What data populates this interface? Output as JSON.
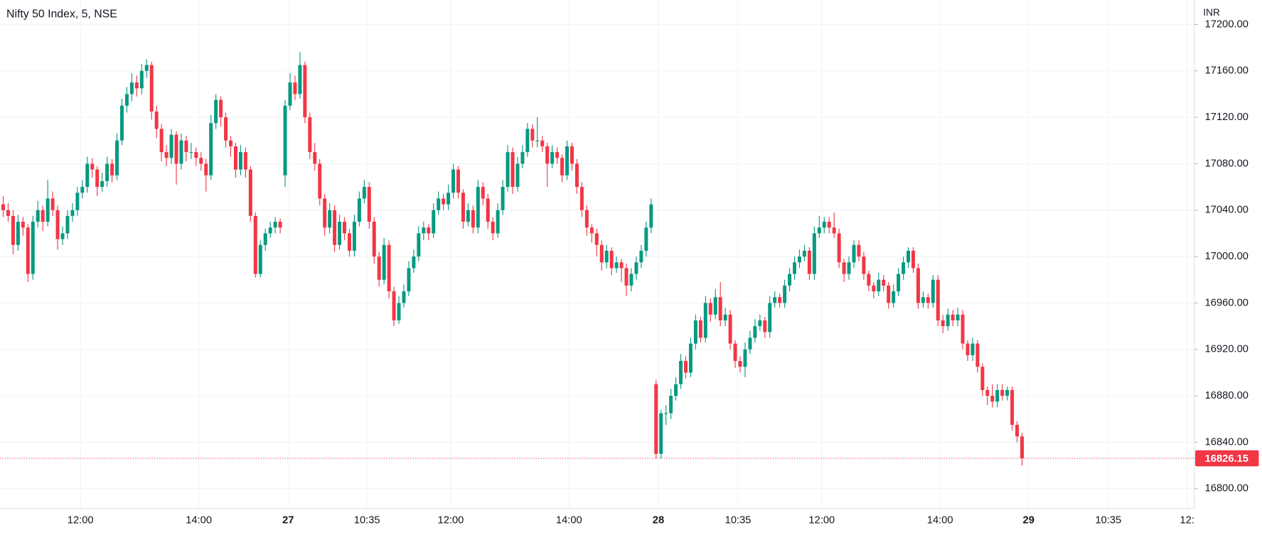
{
  "chart_data": {
    "type": "candlestick",
    "title": "Nifty 50 Index, 5, NSE",
    "currency": "INR",
    "up_color": "#089981",
    "down_color": "#f23645",
    "grid": true,
    "ylim": [
      16783,
      17221
    ],
    "yticks": [
      {
        "value": 16800,
        "label": "16800.00"
      },
      {
        "value": 16840,
        "label": "16840.00"
      },
      {
        "value": 16880,
        "label": "16880.00"
      },
      {
        "value": 16920,
        "label": "16920.00"
      },
      {
        "value": 16960,
        "label": "16960.00"
      },
      {
        "value": 17000,
        "label": "17000.00"
      },
      {
        "value": 17040,
        "label": "17040.00"
      },
      {
        "value": 17080,
        "label": "17080.00"
      },
      {
        "value": 17120,
        "label": "17120.00"
      },
      {
        "value": 17160,
        "label": "17160.00"
      },
      {
        "value": 17200,
        "label": "17200.00"
      }
    ],
    "xticks": [
      "12:00",
      "14:00",
      "27",
      "10:35",
      "12:00",
      "14:00",
      "28",
      "10:35",
      "12:00",
      "14:00",
      "29",
      "10:35",
      "12:"
    ],
    "ohlc": [
      [
        17045,
        17052,
        17034,
        17040
      ],
      [
        17040,
        17046,
        17030,
        17035
      ],
      [
        17035,
        17040,
        17002,
        17010
      ],
      [
        17010,
        17036,
        17005,
        17030
      ],
      [
        17030,
        17034,
        17018,
        17025
      ],
      [
        17025,
        17028,
        16978,
        16985
      ],
      [
        16985,
        17035,
        16980,
        17030
      ],
      [
        17030,
        17048,
        17025,
        17040
      ],
      [
        17040,
        17044,
        17022,
        17030
      ],
      [
        17030,
        17066,
        17026,
        17050
      ],
      [
        17050,
        17056,
        17035,
        17040
      ],
      [
        17040,
        17044,
        17006,
        17015
      ],
      [
        17015,
        17026,
        17010,
        17020
      ],
      [
        17020,
        17040,
        17015,
        17035
      ],
      [
        17035,
        17046,
        17030,
        17040
      ],
      [
        17040,
        17060,
        17035,
        17055
      ],
      [
        17055,
        17066,
        17050,
        17060
      ],
      [
        17060,
        17086,
        17055,
        17080
      ],
      [
        17080,
        17085,
        17068,
        17075
      ],
      [
        17075,
        17078,
        17052,
        17060
      ],
      [
        17060,
        17072,
        17056,
        17065
      ],
      [
        17065,
        17086,
        17060,
        17080
      ],
      [
        17080,
        17084,
        17064,
        17070
      ],
      [
        17070,
        17106,
        17066,
        17100
      ],
      [
        17100,
        17136,
        17096,
        17130
      ],
      [
        17130,
        17146,
        17124,
        17140
      ],
      [
        17140,
        17158,
        17134,
        17150
      ],
      [
        17150,
        17156,
        17138,
        17145
      ],
      [
        17145,
        17166,
        17140,
        17160
      ],
      [
        17160,
        17170,
        17154,
        17165
      ],
      [
        17165,
        17168,
        17118,
        17125
      ],
      [
        17125,
        17130,
        17102,
        17110
      ],
      [
        17110,
        17114,
        17082,
        17090
      ],
      [
        17090,
        17096,
        17078,
        17085
      ],
      [
        17085,
        17110,
        17080,
        17105
      ],
      [
        17105,
        17108,
        17062,
        17080
      ],
      [
        17080,
        17106,
        17075,
        17100
      ],
      [
        17100,
        17104,
        17082,
        17090
      ],
      [
        17090,
        17098,
        17084,
        17090
      ],
      [
        17090,
        17094,
        17078,
        17085
      ],
      [
        17085,
        17090,
        17074,
        17080
      ],
      [
        17080,
        17084,
        17056,
        17070
      ],
      [
        17070,
        17122,
        17066,
        17115
      ],
      [
        17115,
        17140,
        17110,
        17135
      ],
      [
        17135,
        17138,
        17112,
        17120
      ],
      [
        17120,
        17124,
        17094,
        17100
      ],
      [
        17100,
        17104,
        17086,
        17095
      ],
      [
        17095,
        17098,
        17068,
        17075
      ],
      [
        17075,
        17096,
        17070,
        17090
      ],
      [
        17090,
        17094,
        17068,
        17075
      ],
      [
        17075,
        17078,
        17030,
        17035
      ],
      [
        17035,
        17038,
        16982,
        16985
      ],
      [
        16985,
        17014,
        16982,
        17010
      ],
      [
        17010,
        17024,
        17005,
        17020
      ],
      [
        17020,
        17030,
        17016,
        17025
      ],
      [
        17025,
        17034,
        17020,
        17030
      ],
      [
        17030,
        17033,
        17020,
        17025
      ],
      [
        17070,
        17135,
        17060,
        17130
      ],
      [
        17130,
        17158,
        17126,
        17150
      ],
      [
        17150,
        17156,
        17135,
        17140
      ],
      [
        17140,
        17176,
        17136,
        17165
      ],
      [
        17165,
        17168,
        17115,
        17120
      ],
      [
        17120,
        17124,
        17084,
        17090
      ],
      [
        17090,
        17098,
        17074,
        17080
      ],
      [
        17080,
        17084,
        17044,
        17050
      ],
      [
        17050,
        17054,
        17018,
        17025
      ],
      [
        17025,
        17046,
        17020,
        17040
      ],
      [
        17040,
        17044,
        17004,
        17010
      ],
      [
        17010,
        17036,
        17006,
        17030
      ],
      [
        17030,
        17034,
        17014,
        17020
      ],
      [
        17020,
        17024,
        17000,
        17005
      ],
      [
        17005,
        17036,
        17000,
        17030
      ],
      [
        17030,
        17056,
        17026,
        17050
      ],
      [
        17050,
        17066,
        17046,
        17060
      ],
      [
        17060,
        17064,
        17024,
        17030
      ],
      [
        17030,
        17034,
        16994,
        17000
      ],
      [
        17000,
        17004,
        16974,
        16980
      ],
      [
        16980,
        17016,
        16976,
        17010
      ],
      [
        17010,
        17014,
        16964,
        16970
      ],
      [
        16970,
        16974,
        16940,
        16945
      ],
      [
        16945,
        16966,
        16942,
        16960
      ],
      [
        16960,
        16976,
        16956,
        16970
      ],
      [
        16970,
        16996,
        16966,
        16990
      ],
      [
        16990,
        17006,
        16986,
        17000
      ],
      [
        17000,
        17026,
        16996,
        17020
      ],
      [
        17020,
        17030,
        17014,
        17025
      ],
      [
        17025,
        17028,
        17014,
        17020
      ],
      [
        17020,
        17046,
        17016,
        17040
      ],
      [
        17040,
        17056,
        17036,
        17050
      ],
      [
        17050,
        17054,
        17040,
        17045
      ],
      [
        17045,
        17062,
        17040,
        17055
      ],
      [
        17055,
        17080,
        17050,
        17075
      ],
      [
        17075,
        17078,
        17050,
        17055
      ],
      [
        17055,
        17058,
        17024,
        17030
      ],
      [
        17030,
        17046,
        17026,
        17040
      ],
      [
        17040,
        17044,
        17020,
        17025
      ],
      [
        17025,
        17066,
        17020,
        17060
      ],
      [
        17060,
        17064,
        17044,
        17050
      ],
      [
        17050,
        17054,
        17024,
        17030
      ],
      [
        17030,
        17034,
        17014,
        17020
      ],
      [
        17020,
        17046,
        17016,
        17040
      ],
      [
        17040,
        17066,
        17036,
        17060
      ],
      [
        17060,
        17096,
        17056,
        17090
      ],
      [
        17090,
        17094,
        17054,
        17060
      ],
      [
        17060,
        17086,
        17056,
        17080
      ],
      [
        17080,
        17096,
        17076,
        17090
      ],
      [
        17090,
        17115,
        17086,
        17110
      ],
      [
        17110,
        17114,
        17094,
        17100
      ],
      [
        17100,
        17120,
        17094,
        17100
      ],
      [
        17100,
        17104,
        17090,
        17095
      ],
      [
        17095,
        17098,
        17060,
        17080
      ],
      [
        17080,
        17096,
        17076,
        17090
      ],
      [
        17090,
        17094,
        17080,
        17085
      ],
      [
        17085,
        17088,
        17064,
        17070
      ],
      [
        17070,
        17100,
        17066,
        17095
      ],
      [
        17095,
        17098,
        17074,
        17080
      ],
      [
        17080,
        17084,
        17054,
        17060
      ],
      [
        17060,
        17064,
        17034,
        17040
      ],
      [
        17040,
        17044,
        17018,
        17025
      ],
      [
        17025,
        17028,
        17012,
        17020
      ],
      [
        17020,
        17024,
        17000,
        17010
      ],
      [
        17010,
        17014,
        16988,
        16995
      ],
      [
        16995,
        17010,
        16990,
        17005
      ],
      [
        17005,
        17008,
        16984,
        16990
      ],
      [
        16990,
        17000,
        16986,
        16995
      ],
      [
        16995,
        16998,
        16978,
        16990
      ],
      [
        16990,
        16994,
        16966,
        16975
      ],
      [
        16975,
        16990,
        16970,
        16985
      ],
      [
        16985,
        17000,
        16980,
        16995
      ],
      [
        16995,
        17010,
        16990,
        17005
      ],
      [
        17005,
        17030,
        17000,
        17025
      ],
      [
        17025,
        17050,
        17020,
        17045
      ],
      [
        16890,
        16894,
        16826,
        16830
      ],
      [
        16830,
        16868,
        16826,
        16865
      ],
      [
        16865,
        16872,
        16855,
        16865
      ],
      [
        16865,
        16886,
        16860,
        16880
      ],
      [
        16880,
        16896,
        16876,
        16890
      ],
      [
        16890,
        16916,
        16886,
        16910
      ],
      [
        16910,
        16914,
        16895,
        16900
      ],
      [
        16900,
        16930,
        16896,
        16925
      ],
      [
        16925,
        16950,
        16920,
        16945
      ],
      [
        16945,
        16948,
        16926,
        16930
      ],
      [
        16930,
        16966,
        16926,
        16960
      ],
      [
        16960,
        16964,
        16944,
        16950
      ],
      [
        16950,
        16972,
        16946,
        16965
      ],
      [
        16965,
        16978,
        16940,
        16945
      ],
      [
        16945,
        16956,
        16940,
        16950
      ],
      [
        16950,
        16954,
        16920,
        16925
      ],
      [
        16925,
        16928,
        16904,
        16910
      ],
      [
        16910,
        16914,
        16900,
        16905
      ],
      [
        16905,
        16926,
        16896,
        16920
      ],
      [
        16920,
        16936,
        16916,
        16930
      ],
      [
        16930,
        16946,
        16926,
        16940
      ],
      [
        16940,
        16950,
        16936,
        16945
      ],
      [
        16945,
        16948,
        16930,
        16935
      ],
      [
        16935,
        16966,
        16930,
        16960
      ],
      [
        16960,
        16970,
        16956,
        16965
      ],
      [
        16965,
        16968,
        16956,
        16960
      ],
      [
        16960,
        16980,
        16956,
        16975
      ],
      [
        16975,
        16990,
        16970,
        16985
      ],
      [
        16985,
        17000,
        16980,
        16995
      ],
      [
        16995,
        17006,
        16990,
        17000
      ],
      [
        17000,
        17010,
        16996,
        17005
      ],
      [
        17005,
        17008,
        16980,
        16985
      ],
      [
        16985,
        17026,
        16980,
        17020
      ],
      [
        17020,
        17035,
        17016,
        17025
      ],
      [
        17025,
        17034,
        17020,
        17030
      ],
      [
        17030,
        17034,
        17020,
        17025
      ],
      [
        17025,
        17038,
        17016,
        17020
      ],
      [
        17020,
        17024,
        16990,
        16995
      ],
      [
        16995,
        16998,
        16978,
        16985
      ],
      [
        16985,
        17000,
        16980,
        16995
      ],
      [
        16995,
        17014,
        16990,
        17010
      ],
      [
        17010,
        17014,
        16996,
        17000
      ],
      [
        17000,
        17004,
        16980,
        16985
      ],
      [
        16985,
        16988,
        16970,
        16975
      ],
      [
        16975,
        16978,
        16964,
        16970
      ],
      [
        16970,
        16986,
        16966,
        16980
      ],
      [
        16980,
        16984,
        16970,
        16975
      ],
      [
        16975,
        16978,
        16955,
        16960
      ],
      [
        16960,
        16976,
        16956,
        16970
      ],
      [
        16970,
        16990,
        16966,
        16985
      ],
      [
        16985,
        17000,
        16980,
        16995
      ],
      [
        16995,
        17008,
        16990,
        17005
      ],
      [
        17005,
        17008,
        16986,
        16990
      ],
      [
        16990,
        16994,
        16955,
        16960
      ],
      [
        16960,
        16970,
        16956,
        16965
      ],
      [
        16965,
        16968,
        16955,
        16960
      ],
      [
        16960,
        16984,
        16956,
        16980
      ],
      [
        16980,
        16984,
        16940,
        16945
      ],
      [
        16945,
        16950,
        16934,
        16940
      ],
      [
        16940,
        16955,
        16936,
        16950
      ],
      [
        16950,
        16954,
        16940,
        16945
      ],
      [
        16945,
        16956,
        16940,
        16950
      ],
      [
        16950,
        16954,
        16920,
        16925
      ],
      [
        16925,
        16928,
        16910,
        16915
      ],
      [
        16915,
        16930,
        16910,
        16925
      ],
      [
        16925,
        16928,
        16900,
        16905
      ],
      [
        16905,
        16908,
        16880,
        16885
      ],
      [
        16885,
        16888,
        16872,
        16880
      ],
      [
        16880,
        16890,
        16870,
        16875
      ],
      [
        16875,
        16890,
        16870,
        16885
      ],
      [
        16885,
        16890,
        16876,
        16880
      ],
      [
        16880,
        16888,
        16876,
        16885
      ],
      [
        16885,
        16888,
        16850,
        16855
      ],
      [
        16855,
        16858,
        16840,
        16845
      ],
      [
        16845,
        16848,
        16820,
        16826.15
      ]
    ]
  }
}
